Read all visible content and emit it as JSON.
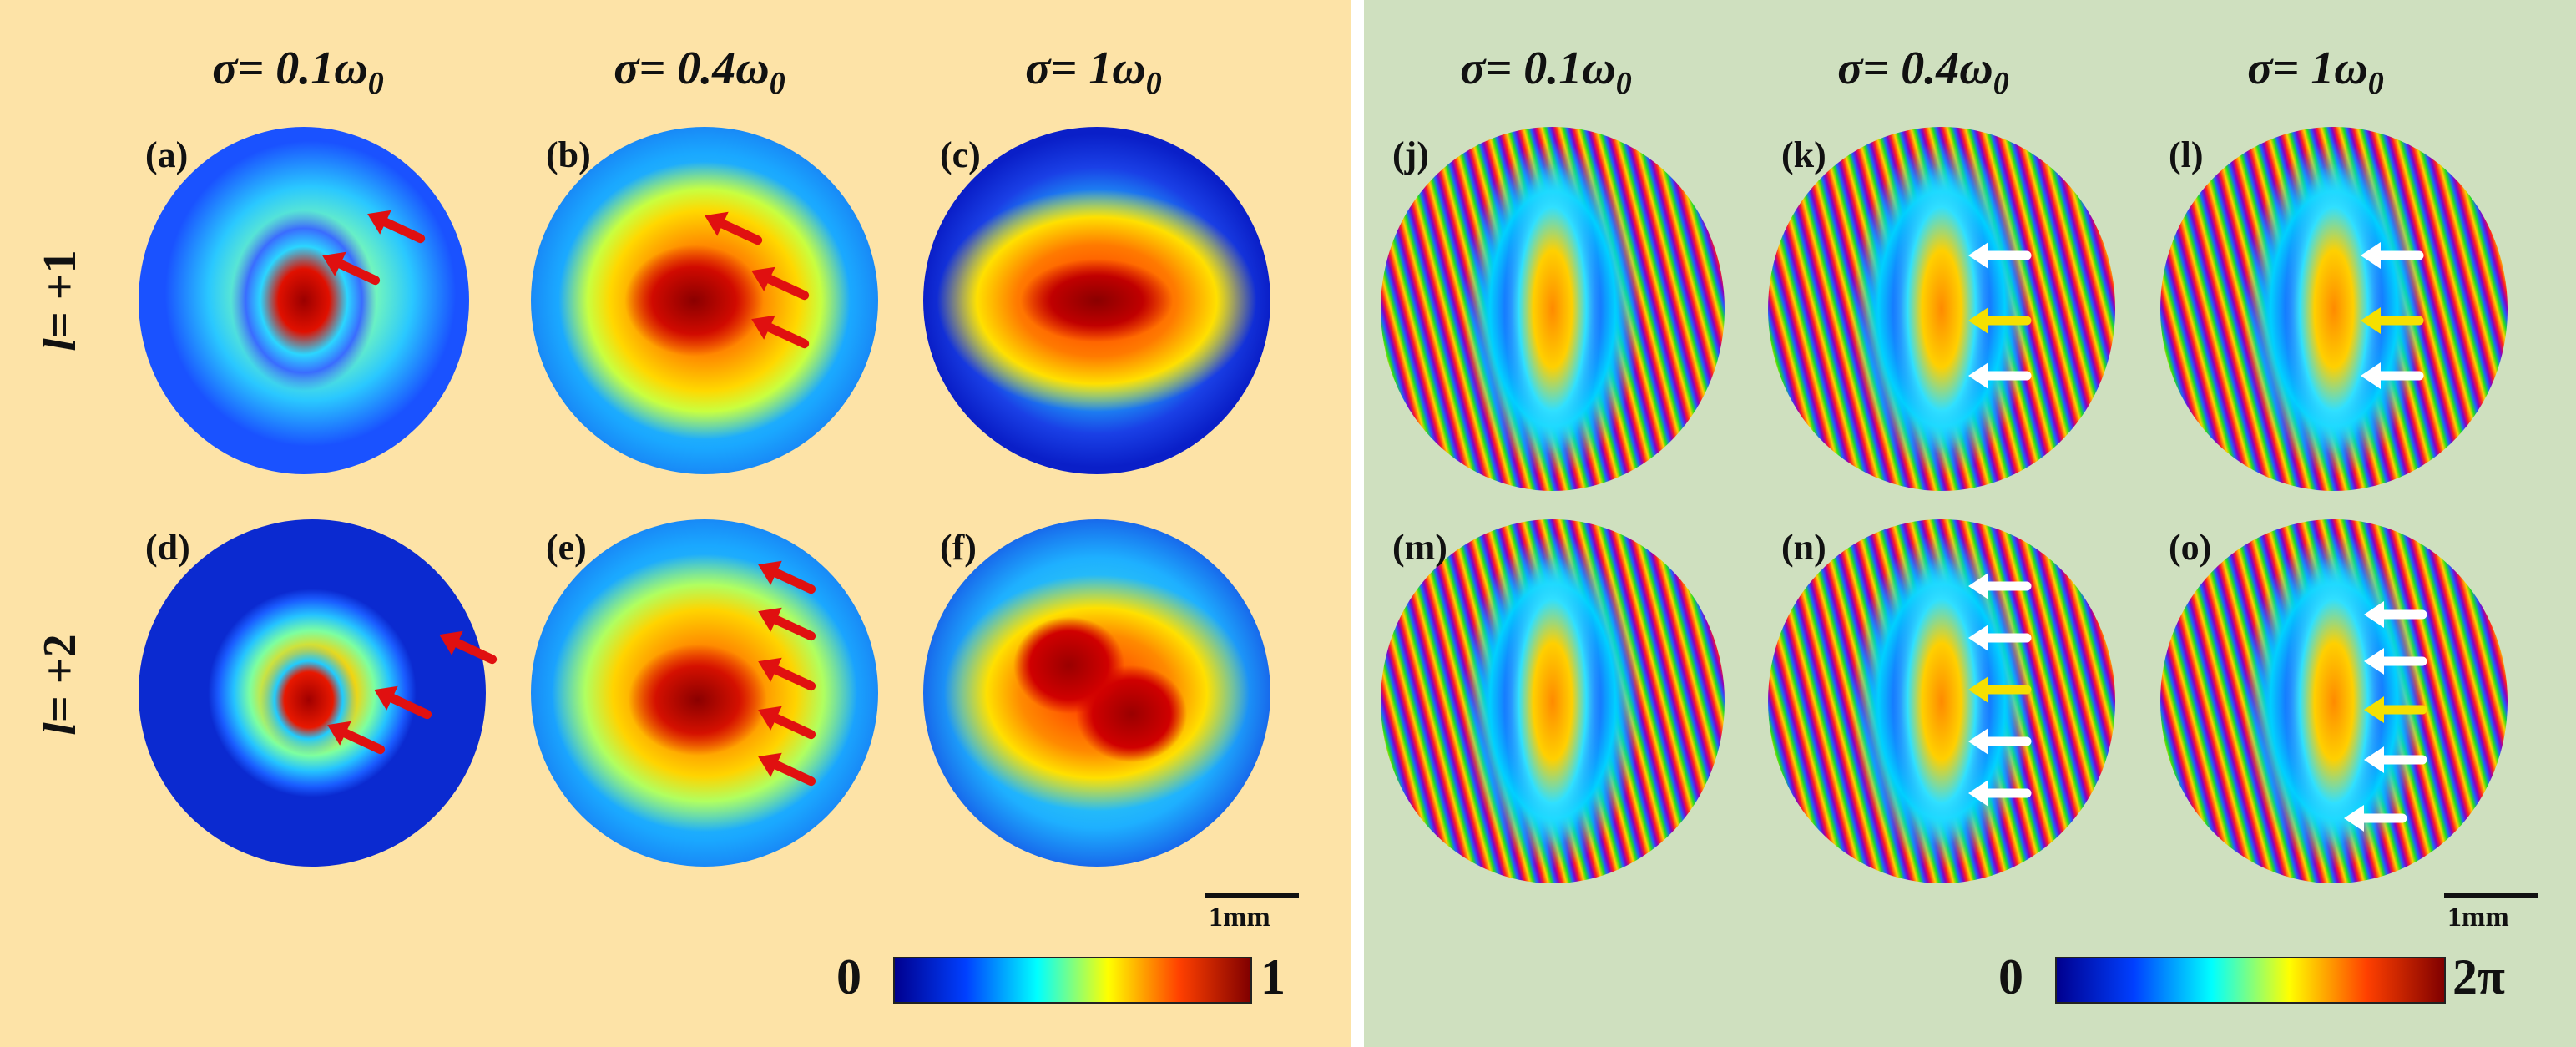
{
  "left_panel": {
    "background": "#fde3a7",
    "headers": [
      "σ= 0.1ω",
      "σ= 0.4ω",
      "σ= 1ω"
    ],
    "header_subscript": "0",
    "row_labels": [
      {
        "var": "l",
        "rest": "= +1"
      },
      {
        "var": "l",
        "rest": "= +2"
      }
    ],
    "panels": [
      "(a)",
      "(b)",
      "(c)",
      "(d)",
      "(e)",
      "(f)"
    ],
    "scale_bar": "1mm",
    "colorbar": {
      "min": "0",
      "max": "1",
      "colors": [
        "#00008f",
        "#0040ff",
        "#00ffff",
        "#ffff00",
        "#ff4000",
        "#800000"
      ]
    },
    "arrow_color": "#e01010"
  },
  "right_panel": {
    "background": "#cfe0bf",
    "headers": [
      "σ= 0.1ω",
      "σ= 0.4ω",
      "σ= 1ω"
    ],
    "header_subscript": "0",
    "panels": [
      "(j)",
      "(k)",
      "(l)",
      "(m)",
      "(n)",
      "(o)"
    ],
    "scale_bar": "1mm",
    "colorbar": {
      "min": "0",
      "max": "2π",
      "colors": [
        "#00008f",
        "#0040ff",
        "#00ffff",
        "#ffff00",
        "#ff4000",
        "#800000"
      ]
    },
    "arrow_colors": [
      "#ffffff",
      "#f5e000"
    ]
  }
}
